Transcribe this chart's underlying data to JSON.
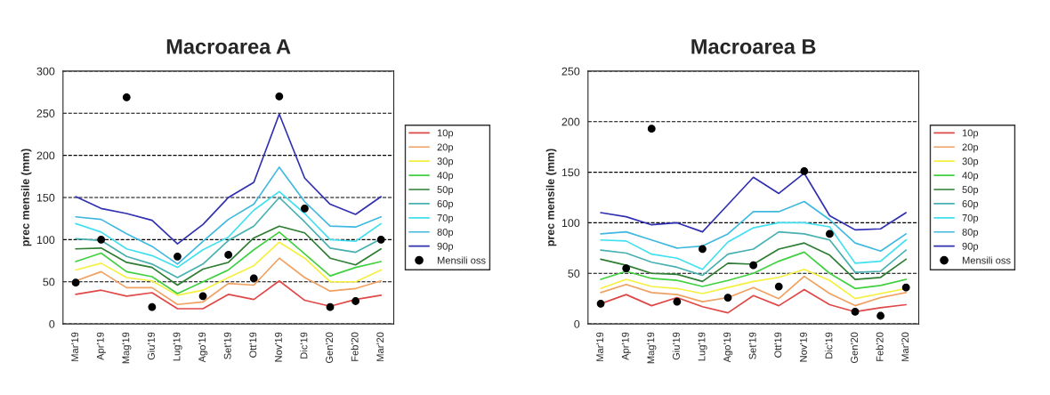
{
  "chart_data": [
    {
      "type": "line",
      "title": "Macroarea A",
      "ylabel": "prec mensile (mm)",
      "categories": [
        "Mar'19",
        "Apr'19",
        "Mag'19",
        "Giu'19",
        "Lug'19",
        "Ago'19",
        "Set'19",
        "Ott'19",
        "Nov'19",
        "Dic'19",
        "Gen'20",
        "Feb'20",
        "Mar'20"
      ],
      "ylim": [
        0,
        300
      ],
      "yticks": [
        0,
        50,
        100,
        150,
        200,
        250,
        300
      ],
      "grid": "y",
      "legend": "right",
      "marker": "none",
      "series": [
        {
          "name": "10p",
          "color": "#e04848",
          "values": [
            35,
            40,
            33,
            37,
            18,
            18,
            35,
            29,
            51,
            28,
            21,
            29,
            34
          ]
        },
        {
          "name": "20p",
          "color": "#f0a060",
          "values": [
            51,
            62,
            43,
            43,
            23,
            26,
            48,
            46,
            78,
            55,
            39,
            42,
            51
          ]
        },
        {
          "name": "30p",
          "color": "#f5f040",
          "values": [
            64,
            72,
            55,
            51,
            34,
            40,
            55,
            69,
            97,
            78,
            50,
            50,
            64
          ]
        },
        {
          "name": "40p",
          "color": "#40d040",
          "values": [
            74,
            84,
            62,
            56,
            36,
            50,
            64,
            88,
            109,
            83,
            57,
            67,
            74
          ]
        },
        {
          "name": "50p",
          "color": "#2e7d32",
          "values": [
            89,
            90,
            73,
            67,
            46,
            65,
            73,
            102,
            116,
            108,
            78,
            70,
            89
          ]
        },
        {
          "name": "60p",
          "color": "#48b0b0",
          "values": [
            101,
            99,
            80,
            71,
            55,
            71,
            99,
            116,
            150,
            121,
            90,
            85,
            101
          ]
        },
        {
          "name": "70p",
          "color": "#40e0f0",
          "values": [
            119,
            109,
            89,
            81,
            67,
            88,
            103,
            135,
            157,
            131,
            100,
            98,
            119
          ]
        },
        {
          "name": "80p",
          "color": "#40b8e0",
          "values": [
            127,
            124,
            107,
            92,
            71,
            98,
            124,
            142,
            186,
            145,
            116,
            115,
            127
          ]
        },
        {
          "name": "90p",
          "color": "#3030b0",
          "values": [
            151,
            137,
            131,
            123,
            95,
            118,
            150,
            168,
            249,
            173,
            142,
            130,
            151
          ]
        },
        {
          "name": "Mensili oss",
          "type": "scatter",
          "marker": "circle",
          "color": "#000000",
          "values": [
            49,
            100,
            269,
            20,
            80,
            33,
            82,
            54,
            270,
            137,
            20,
            27,
            100
          ]
        }
      ]
    },
    {
      "type": "line",
      "title": "Macroarea B",
      "ylabel": "prec mensile (mm)",
      "categories": [
        "Mar'19",
        "Apr'19",
        "Mag'19",
        "Giu'19",
        "Lug'19",
        "Ago'19",
        "Set'19",
        "Ott'19",
        "Nov'19",
        "Dic'19",
        "Gen'20",
        "Feb'20",
        "Mar'20"
      ],
      "ylim": [
        0,
        250
      ],
      "yticks": [
        0,
        50,
        100,
        150,
        200,
        250
      ],
      "grid": "y",
      "legend": "right",
      "marker": "none",
      "series": [
        {
          "name": "10p",
          "color": "#e04848",
          "values": [
            20,
            29,
            18,
            26,
            17,
            11,
            28,
            18,
            34,
            19,
            12,
            16,
            19
          ]
        },
        {
          "name": "20p",
          "color": "#f0a060",
          "values": [
            31,
            39,
            31,
            29,
            22,
            26,
            36,
            25,
            47,
            30,
            18,
            26,
            31
          ]
        },
        {
          "name": "30p",
          "color": "#f5f040",
          "values": [
            35,
            44,
            37,
            35,
            30,
            36,
            42,
            46,
            54,
            43,
            25,
            30,
            35
          ]
        },
        {
          "name": "40p",
          "color": "#40d040",
          "values": [
            44,
            52,
            45,
            43,
            37,
            43,
            50,
            62,
            71,
            50,
            35,
            38,
            44
          ]
        },
        {
          "name": "50p",
          "color": "#2e7d32",
          "values": [
            64,
            58,
            50,
            49,
            42,
            60,
            59,
            74,
            80,
            68,
            44,
            46,
            64
          ]
        },
        {
          "name": "60p",
          "color": "#48b0b0",
          "values": [
            73,
            70,
            61,
            56,
            48,
            69,
            74,
            91,
            89,
            83,
            51,
            52,
            73
          ]
        },
        {
          "name": "70p",
          "color": "#40e0f0",
          "values": [
            83,
            82,
            69,
            65,
            54,
            81,
            95,
            100,
            100,
            96,
            60,
            62,
            83
          ]
        },
        {
          "name": "80p",
          "color": "#40b8e0",
          "values": [
            89,
            91,
            83,
            75,
            77,
            89,
            111,
            111,
            121,
            103,
            80,
            72,
            89
          ]
        },
        {
          "name": "90p",
          "color": "#3030b0",
          "values": [
            110,
            106,
            98,
            100,
            91,
            118,
            145,
            129,
            149,
            107,
            93,
            94,
            110
          ]
        },
        {
          "name": "Mensili oss",
          "type": "scatter",
          "marker": "circle",
          "color": "#000000",
          "values": [
            20,
            55,
            193,
            22,
            74,
            26,
            58,
            37,
            151,
            89,
            12,
            8,
            36
          ]
        }
      ]
    }
  ]
}
